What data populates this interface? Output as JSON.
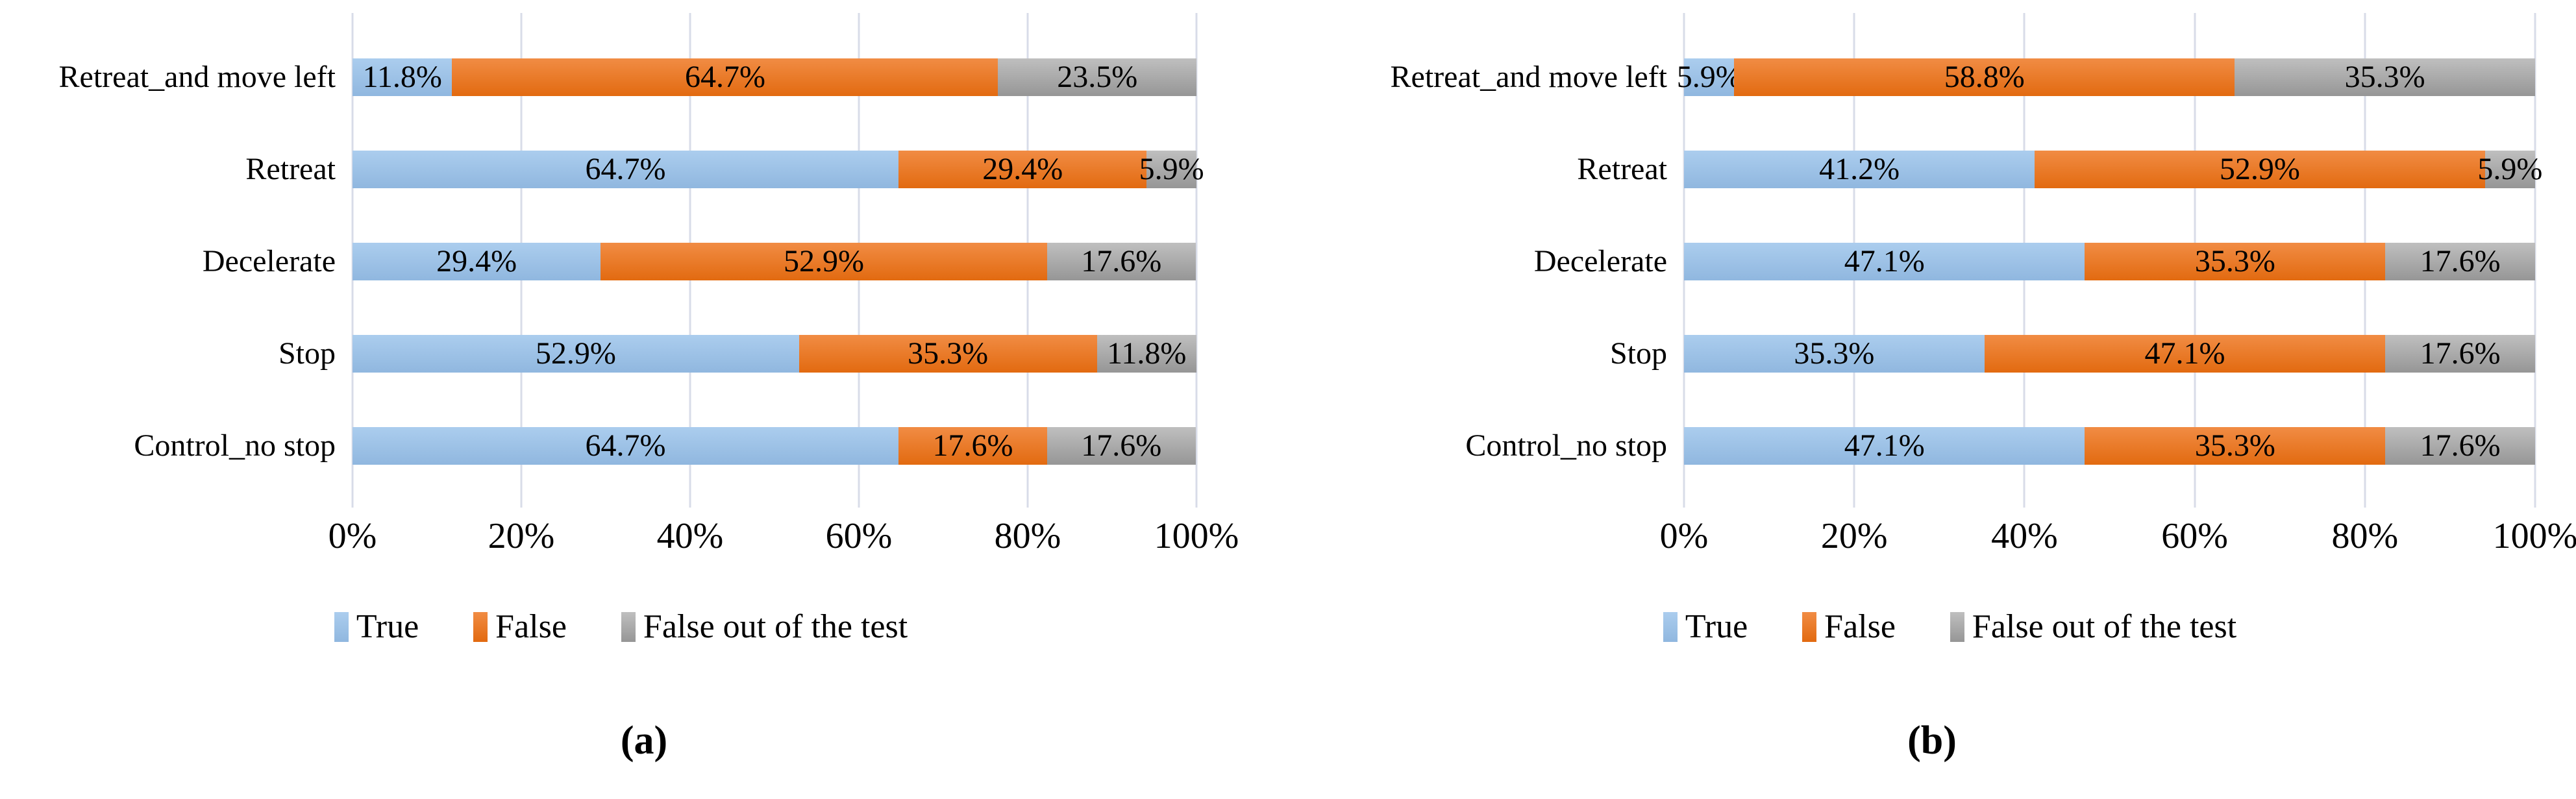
{
  "figure": {
    "description": "Two horizontal stacked percentage bar charts side by side",
    "background": "#ffffff",
    "gridline_color": "#D8DCE8",
    "text_color": "#000000"
  },
  "series_styles": {
    "True": {
      "color": "#9DC3E6",
      "color_top": "#ABCDEE",
      "color_bottom": "#90B7DF"
    },
    "False": {
      "color": "#ED7D31",
      "color_top": "#F18C44",
      "color_bottom": "#E26A10"
    },
    "False out of the test": {
      "color": "#A9A9A9",
      "color_top": "#BFBFBF",
      "color_bottom": "#969696"
    }
  },
  "x_axis": {
    "ticks": [
      "0%",
      "20%",
      "40%",
      "60%",
      "80%",
      "100%"
    ],
    "min": 0,
    "max": 100
  },
  "legend": {
    "items": [
      "True",
      "False",
      "False out of the test"
    ],
    "position": "bottom-center"
  },
  "chart_data": [
    {
      "type": "bar",
      "orientation": "horizontal",
      "stacked": true,
      "caption": "(a)",
      "title": "",
      "xlabel": "",
      "ylabel": "",
      "xlim": [
        0,
        100
      ],
      "grid": "vertical",
      "legend_position": "bottom",
      "categories": [
        "Retreat_and move left",
        "Retreat",
        "Decelerate",
        "Stop",
        "Control_no stop"
      ],
      "series": [
        {
          "name": "True",
          "values": [
            11.8,
            64.7,
            29.4,
            52.9,
            64.7
          ],
          "labels": [
            "11.8%",
            "64.7%",
            "29.4%",
            "52.9%",
            "64.7%"
          ]
        },
        {
          "name": "False",
          "values": [
            64.7,
            29.4,
            52.9,
            35.3,
            17.6
          ],
          "labels": [
            "64.7%",
            "29.4%",
            "52.9%",
            "35.3%",
            "17.6%"
          ]
        },
        {
          "name": "False out of the test",
          "values": [
            23.5,
            5.9,
            17.6,
            11.8,
            17.6
          ],
          "labels": [
            "23.5%",
            "5.9%",
            "17.6%",
            "11.8%",
            "17.6%"
          ]
        }
      ]
    },
    {
      "type": "bar",
      "orientation": "horizontal",
      "stacked": true,
      "caption": "(b)",
      "title": "",
      "xlabel": "",
      "ylabel": "",
      "xlim": [
        0,
        100
      ],
      "grid": "vertical",
      "legend_position": "bottom",
      "categories": [
        "Retreat_and move left",
        "Retreat",
        "Decelerate",
        "Stop",
        "Control_no stop"
      ],
      "series": [
        {
          "name": "True",
          "values": [
            5.9,
            41.2,
            47.1,
            35.3,
            47.1
          ],
          "labels": [
            "5.9%",
            "41.2%",
            "47.1%",
            "35.3%",
            "47.1%"
          ]
        },
        {
          "name": "False",
          "values": [
            58.8,
            52.9,
            35.3,
            47.1,
            35.3
          ],
          "labels": [
            "58.8%",
            "52.9%",
            "35.3%",
            "47.1%",
            "35.3%"
          ]
        },
        {
          "name": "False out of the test",
          "values": [
            35.3,
            5.9,
            17.6,
            17.6,
            17.6
          ],
          "labels": [
            "35.3%",
            "5.9%",
            "17.6%",
            "17.6%",
            "17.6%"
          ]
        }
      ]
    }
  ]
}
